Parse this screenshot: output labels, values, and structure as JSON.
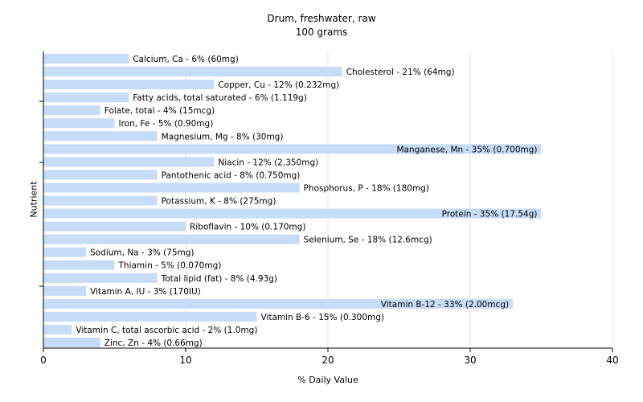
{
  "chart_data": {
    "type": "bar",
    "orientation": "horizontal",
    "title": "Drum, freshwater, raw",
    "subtitle": "100 grams",
    "xlabel": "% Daily Value",
    "ylabel": "Nutrient",
    "xlim": [
      0,
      40
    ],
    "xticks": [
      0,
      10,
      20,
      30,
      40
    ],
    "grid": true,
    "bar_color": "#c6dcf7",
    "bars": [
      {
        "value": 6,
        "label": "Calcium, Ca - 6% (60mg)"
      },
      {
        "value": 21,
        "label": "Cholesterol - 21% (64mg)"
      },
      {
        "value": 12,
        "label": "Copper, Cu - 12% (0.232mg)"
      },
      {
        "value": 6,
        "label": "Fatty acids, total saturated - 6% (1.119g)"
      },
      {
        "value": 4,
        "label": "Folate, total - 4% (15mcg)"
      },
      {
        "value": 5,
        "label": "Iron, Fe - 5% (0.90mg)"
      },
      {
        "value": 8,
        "label": "Magnesium, Mg - 8% (30mg)"
      },
      {
        "value": 35,
        "label": "Manganese, Mn - 35% (0.700mg)"
      },
      {
        "value": 12,
        "label": "Niacin - 12% (2.350mg)"
      },
      {
        "value": 8,
        "label": "Pantothenic acid - 8% (0.750mg)"
      },
      {
        "value": 18,
        "label": "Phosphorus, P - 18% (180mg)"
      },
      {
        "value": 8,
        "label": "Potassium, K - 8% (275mg)"
      },
      {
        "value": 35,
        "label": "Protein - 35% (17.54g)"
      },
      {
        "value": 10,
        "label": "Riboflavin - 10% (0.170mg)"
      },
      {
        "value": 18,
        "label": "Selenium, Se - 18% (12.6mcg)"
      },
      {
        "value": 3,
        "label": "Sodium, Na - 3% (75mg)"
      },
      {
        "value": 5,
        "label": "Thiamin - 5% (0.070mg)"
      },
      {
        "value": 8,
        "label": "Total lipid (fat) - 8% (4.93g)"
      },
      {
        "value": 3,
        "label": "Vitamin A, IU - 3% (170IU)"
      },
      {
        "value": 33,
        "label": "Vitamin B-12 - 33% (2.00mcg)"
      },
      {
        "value": 15,
        "label": "Vitamin B-6 - 15% (0.300mg)"
      },
      {
        "value": 2,
        "label": "Vitamin C, total ascorbic acid - 2% (1.0mg)"
      },
      {
        "value": 4,
        "label": "Zinc, Zn - 4% (0.66mg)"
      }
    ]
  }
}
